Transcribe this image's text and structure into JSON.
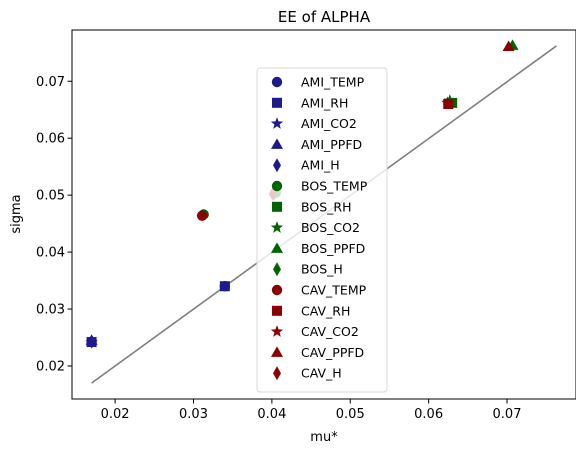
{
  "chart_data": {
    "type": "scatter",
    "title": "EE of ALPHA",
    "xlabel": "mu*",
    "ylabel": "sigma",
    "xlim": [
      0.0145,
      0.0788
    ],
    "ylim": [
      0.0142,
      0.079
    ],
    "xticks": [
      0.02,
      0.03,
      0.04,
      0.05,
      0.06,
      0.07
    ],
    "yticks": [
      0.02,
      0.03,
      0.04,
      0.05,
      0.06,
      0.07
    ],
    "grid": false,
    "legend": "center",
    "reference_line": {
      "x": [
        0.017,
        0.0763
      ],
      "y": [
        0.017,
        0.0762
      ],
      "color": "#808080"
    },
    "series": [
      {
        "name": "AMI_TEMP",
        "marker": "circle",
        "color": "#1f1a8c",
        "x": [
          0.017,
          0.034
        ],
        "y": [
          0.0242,
          0.034
        ]
      },
      {
        "name": "AMI_RH",
        "marker": "square",
        "color": "#1f1a8c",
        "x": [
          0.017,
          0.034
        ],
        "y": [
          0.0242,
          0.034
        ]
      },
      {
        "name": "AMI_CO2",
        "marker": "star",
        "color": "#1f1a8c",
        "x": [
          0.017
        ],
        "y": [
          0.0242
        ]
      },
      {
        "name": "AMI_PPFD",
        "marker": "triangle",
        "color": "#1f1a8c",
        "x": [
          0.017
        ],
        "y": [
          0.0245
        ]
      },
      {
        "name": "AMI_H",
        "marker": "diamond",
        "color": "#1f1a8c",
        "x": [
          0.017
        ],
        "y": [
          0.0243
        ]
      },
      {
        "name": "BOS_TEMP",
        "marker": "circle",
        "color": "#006400",
        "x": [
          0.0313,
          0.0405
        ],
        "y": [
          0.0466,
          0.0504
        ]
      },
      {
        "name": "BOS_RH",
        "marker": "square",
        "color": "#006400",
        "x": [
          0.063
        ],
        "y": [
          0.0662
        ]
      },
      {
        "name": "BOS_CO2",
        "marker": "star",
        "color": "#006400",
        "x": [
          0.0627
        ],
        "y": [
          0.0666
        ]
      },
      {
        "name": "BOS_PPFD",
        "marker": "triangle",
        "color": "#006400",
        "x": [
          0.0707
        ],
        "y": [
          0.0763
        ]
      },
      {
        "name": "BOS_H",
        "marker": "diamond",
        "color": "#006400",
        "x": [
          0.0403
        ],
        "y": [
          0.0503
        ]
      },
      {
        "name": "CAV_TEMP",
        "marker": "circle",
        "color": "#8b0000",
        "x": [
          0.0311
        ],
        "y": [
          0.0464
        ]
      },
      {
        "name": "CAV_RH",
        "marker": "square",
        "color": "#8b0000",
        "x": [
          0.0625
        ],
        "y": [
          0.066
        ]
      },
      {
        "name": "CAV_CO2",
        "marker": "star",
        "color": "#8b0000",
        "x": [
          0.0624
        ],
        "y": [
          0.0662
        ]
      },
      {
        "name": "CAV_PPFD",
        "marker": "triangle",
        "color": "#8b0000",
        "x": [
          0.0702
        ],
        "y": [
          0.0761
        ]
      },
      {
        "name": "CAV_H",
        "marker": "diamond",
        "color": "#8b0000",
        "x": [
          0.0401
        ],
        "y": [
          0.0502
        ]
      }
    ]
  }
}
